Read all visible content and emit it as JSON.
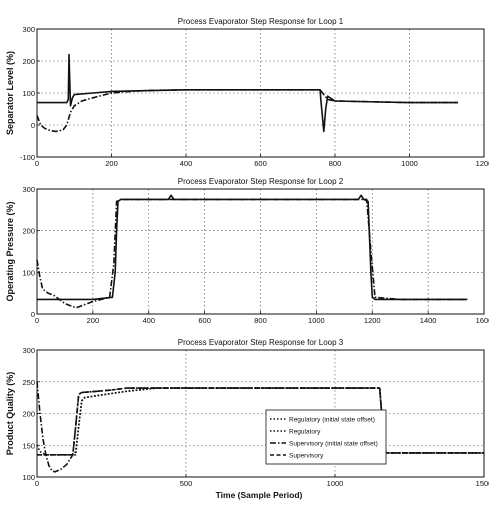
{
  "chart_data": [
    {
      "type": "line",
      "title": "Process Evaporator Step Response for Loop 1",
      "ylabel": "Separator Level (%)",
      "xlabel": "",
      "xlim": [
        0,
        1200
      ],
      "ylim": [
        -100,
        300
      ],
      "xticks": [
        0,
        200,
        400,
        600,
        800,
        1000,
        1200
      ],
      "yticks": [
        -100,
        0,
        100,
        200,
        300
      ],
      "ytick_labels": [
        "-100",
        "0",
        "100",
        "200",
        "300"
      ],
      "grid": true,
      "series": [
        {
          "style": "solid",
          "x": [
            0,
            80,
            84,
            86,
            90,
            95,
            100,
            150,
            200,
            400,
            600,
            760,
            762,
            765,
            770,
            775,
            780,
            800,
            1000,
            1130
          ],
          "y": [
            70,
            70,
            80,
            220,
            60,
            85,
            95,
            100,
            105,
            110,
            110,
            110,
            80,
            40,
            -20,
            50,
            90,
            75,
            70,
            70
          ]
        },
        {
          "style": "dashdot",
          "x": [
            0,
            10,
            20,
            30,
            40,
            50,
            60,
            70,
            80,
            90,
            100,
            120,
            150,
            200,
            250,
            300,
            400,
            600,
            760,
            780,
            800,
            1000,
            1130
          ],
          "y": [
            30,
            0,
            -10,
            -15,
            -18,
            -20,
            -18,
            -15,
            0,
            40,
            60,
            75,
            85,
            100,
            105,
            108,
            110,
            110,
            110,
            80,
            75,
            70,
            70
          ]
        }
      ]
    },
    {
      "type": "line",
      "title": "Process Evaporator Step Response for Loop 2",
      "ylabel": "Operating Pressure (%)",
      "xlabel": "",
      "xlim": [
        0,
        1600
      ],
      "ylim": [
        0,
        300
      ],
      "xticks": [
        0,
        200,
        400,
        600,
        800,
        1000,
        1200,
        1400,
        1600
      ],
      "yticks": [
        0,
        100,
        200,
        300
      ],
      "ytick_labels": [
        "0",
        "100",
        "200",
        "300"
      ],
      "grid": true,
      "series": [
        {
          "style": "solid",
          "x": [
            0,
            100,
            200,
            270,
            280,
            285,
            290,
            300,
            470,
            480,
            490,
            600,
            800,
            1000,
            1150,
            1160,
            1170,
            1185,
            1195,
            1200,
            1210,
            1300,
            1540
          ],
          "y": [
            35,
            35,
            35,
            40,
            100,
            200,
            270,
            275,
            275,
            285,
            275,
            275,
            275,
            275,
            275,
            285,
            275,
            270,
            100,
            40,
            35,
            35,
            35
          ]
        },
        {
          "style": "dashdot",
          "x": [
            0,
            10,
            20,
            40,
            60,
            80,
            100,
            120,
            140,
            160,
            180,
            200,
            230,
            260,
            275,
            285,
            300,
            400,
            600,
            800,
            1000,
            1180,
            1195,
            1210,
            1300,
            1540
          ],
          "y": [
            130,
            90,
            60,
            50,
            45,
            35,
            25,
            20,
            15,
            20,
            25,
            30,
            35,
            40,
            120,
            270,
            275,
            275,
            275,
            275,
            275,
            275,
            150,
            40,
            35,
            35
          ]
        }
      ]
    },
    {
      "type": "line",
      "title": "Process Evaporator Step Response for Loop 3",
      "ylabel": "Product Quality (%)",
      "xlabel": "Time (Sample Period)",
      "xlim": [
        0,
        1500
      ],
      "ylim": [
        100,
        300
      ],
      "xticks": [
        0,
        500,
        1000,
        1500
      ],
      "yticks": [
        100,
        150,
        200,
        250,
        300
      ],
      "ytick_labels": [
        "100",
        "150",
        "200",
        "250",
        "300"
      ],
      "grid": true,
      "series": [
        {
          "name": "Regulatory (initial state offset)",
          "style": "dotted",
          "x": [
            0,
            10,
            30,
            60,
            90,
            120,
            130,
            140,
            150,
            160,
            200,
            300,
            400,
            600,
            800,
            1000,
            1150,
            1160,
            1170,
            1300,
            1500
          ],
          "y": [
            150,
            140,
            135,
            135,
            135,
            135,
            135,
            180,
            220,
            225,
            228,
            235,
            240,
            240,
            240,
            240,
            240,
            180,
            138,
            138,
            138
          ]
        },
        {
          "name": "Regulatory",
          "style": "dotted",
          "x": [
            0,
            120,
            130,
            140,
            150,
            160,
            200,
            300,
            400,
            600,
            800,
            1000,
            1150,
            1160,
            1170,
            1300,
            1500
          ],
          "y": [
            135,
            135,
            140,
            180,
            220,
            225,
            228,
            235,
            240,
            240,
            240,
            240,
            240,
            180,
            138,
            138,
            138
          ]
        },
        {
          "name": "Supervisory (initial state offset)",
          "style": "dashdot",
          "x": [
            0,
            10,
            20,
            30,
            40,
            50,
            60,
            80,
            100,
            120,
            130,
            140,
            150,
            200,
            250,
            300,
            400,
            600,
            800,
            1000,
            1150,
            1160,
            1170,
            1300,
            1500
          ],
          "y": [
            250,
            200,
            160,
            135,
            118,
            110,
            108,
            112,
            120,
            135,
            180,
            230,
            233,
            235,
            237,
            240,
            240,
            240,
            240,
            240,
            240,
            180,
            138,
            138,
            138
          ]
        },
        {
          "name": "Supervisory",
          "style": "dashed",
          "x": [
            0,
            120,
            130,
            140,
            150,
            200,
            250,
            300,
            400,
            600,
            800,
            1000,
            1150,
            1160,
            1170,
            1300,
            1500
          ],
          "y": [
            135,
            135,
            180,
            230,
            233,
            235,
            237,
            240,
            240,
            240,
            240,
            240,
            240,
            180,
            138,
            138,
            138
          ]
        }
      ],
      "legend_position": "lower-right"
    }
  ]
}
